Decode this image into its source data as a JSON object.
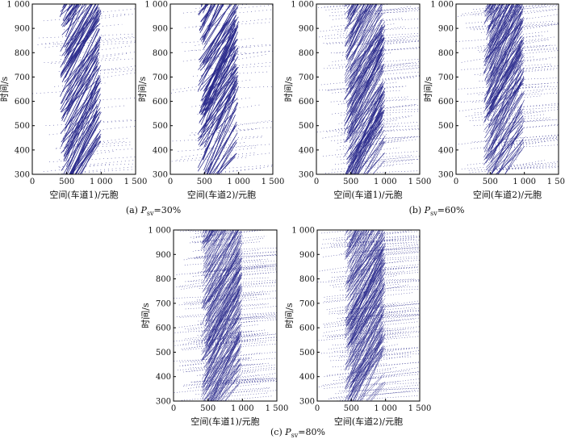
{
  "figure": {
    "captions": [
      {
        "prefix": "(a) ",
        "symbol": "P",
        "sub": "sv",
        "suffix": "=30%"
      },
      {
        "prefix": "(b) ",
        "symbol": "P",
        "sub": "sv",
        "suffix": "=60%"
      },
      {
        "prefix": "(c) ",
        "symbol": "P",
        "sub": "sv",
        "suffix": "=80%"
      }
    ]
  },
  "chart_data": [
    {
      "type": "scatter",
      "panel": "a-lane1",
      "xlabel": "空间(车道1)/元胞",
      "ylabel": "时间/s",
      "xlim": [
        0,
        1500
      ],
      "ylim": [
        300,
        1000
      ],
      "xticks": [
        0,
        500,
        1000,
        1500
      ],
      "xtick_labels": [
        "0",
        "500",
        "1 000",
        "1 500"
      ],
      "yticks": [
        300,
        400,
        500,
        600,
        700,
        800,
        900,
        1000
      ],
      "ytick_labels": [
        "300",
        "400",
        "500",
        "600",
        "700",
        "800",
        "900",
        "1 000"
      ],
      "grid": false,
      "color": "#2b2b8c",
      "congested_region": [
        400,
        1000
      ],
      "density": "low"
    },
    {
      "type": "scatter",
      "panel": "a-lane2",
      "xlabel": "空间(车道2)/元胞",
      "ylabel": "时间/s",
      "xlim": [
        0,
        1500
      ],
      "ylim": [
        300,
        1000
      ],
      "xticks": [
        0,
        500,
        1000,
        1500
      ],
      "xtick_labels": [
        "0",
        "500",
        "1 000",
        "1 500"
      ],
      "yticks": [
        300,
        400,
        500,
        600,
        700,
        800,
        900,
        1000
      ],
      "ytick_labels": [
        "300",
        "400",
        "500",
        "600",
        "700",
        "800",
        "900",
        "1 000"
      ],
      "grid": false,
      "color": "#2b2b8c",
      "congested_region": [
        400,
        1000
      ],
      "density": "low"
    },
    {
      "type": "scatter",
      "panel": "b-lane1",
      "xlabel": "空间(车道1)/元胞",
      "ylabel": "时间/s",
      "xlim": [
        0,
        1500
      ],
      "ylim": [
        300,
        1000
      ],
      "xticks": [
        0,
        500,
        1000,
        1500
      ],
      "xtick_labels": [
        "0",
        "500",
        "1 000",
        "1 500"
      ],
      "yticks": [
        300,
        400,
        500,
        600,
        700,
        800,
        900,
        1000
      ],
      "ytick_labels": [
        "300",
        "400",
        "500",
        "600",
        "700",
        "800",
        "900",
        "1 000"
      ],
      "grid": false,
      "color": "#2b2b8c",
      "congested_region": [
        400,
        1000
      ],
      "density": "medium"
    },
    {
      "type": "scatter",
      "panel": "b-lane2",
      "xlabel": "空间(车道2)/元胞",
      "ylabel": "时间/s",
      "xlim": [
        0,
        1500
      ],
      "ylim": [
        300,
        1000
      ],
      "xticks": [
        0,
        500,
        1000,
        1500
      ],
      "xtick_labels": [
        "0",
        "500",
        "1 000",
        "1 500"
      ],
      "yticks": [
        300,
        400,
        500,
        600,
        700,
        800,
        900,
        1000
      ],
      "ytick_labels": [
        "300",
        "400",
        "500",
        "600",
        "700",
        "800",
        "900",
        "1 000"
      ],
      "grid": false,
      "color": "#2b2b8c",
      "congested_region": [
        400,
        1000
      ],
      "density": "medium"
    },
    {
      "type": "scatter",
      "panel": "c-lane1",
      "xlabel": "空间(车道1)/元胞",
      "ylabel": "时间/s",
      "xlim": [
        0,
        1500
      ],
      "ylim": [
        300,
        1000
      ],
      "xticks": [
        0,
        500,
        1000,
        1500
      ],
      "xtick_labels": [
        "0",
        "500",
        "1 000",
        "1 500"
      ],
      "yticks": [
        300,
        400,
        500,
        600,
        700,
        800,
        900,
        1000
      ],
      "ytick_labels": [
        "300",
        "400",
        "500",
        "600",
        "700",
        "800",
        "900",
        "1 000"
      ],
      "grid": false,
      "color": "#2b2b8c",
      "congested_region": [
        400,
        1000
      ],
      "density": "high"
    },
    {
      "type": "scatter",
      "panel": "c-lane2",
      "xlabel": "空间(车道2)/元胞",
      "ylabel": "时间/s",
      "xlim": [
        0,
        1500
      ],
      "ylim": [
        300,
        1000
      ],
      "xticks": [
        0,
        500,
        1000,
        1500
      ],
      "xtick_labels": [
        "0",
        "500",
        "1 000",
        "1 500"
      ],
      "yticks": [
        300,
        400,
        500,
        600,
        700,
        800,
        900,
        1000
      ],
      "ytick_labels": [
        "300",
        "400",
        "500",
        "600",
        "700",
        "800",
        "900",
        "1 000"
      ],
      "grid": false,
      "color": "#2b2b8c",
      "congested_region": [
        400,
        1000
      ],
      "density": "high"
    }
  ]
}
